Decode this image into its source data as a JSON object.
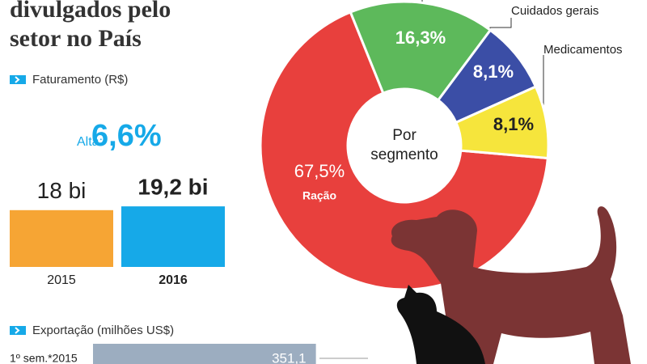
{
  "header": {
    "title_lines": [
      "divulgados pelo",
      "setor no País"
    ]
  },
  "chart_data": [
    {
      "type": "bar",
      "title": "Faturamento (R$)",
      "annotation_label": "Alta:",
      "annotation_value": "6,6%",
      "categories": [
        "2015",
        "2016"
      ],
      "values": [
        18,
        19.2
      ],
      "value_labels": [
        "18 bi",
        "19,2 bi"
      ],
      "colors": [
        "#f6a534",
        "#16a9e8"
      ]
    },
    {
      "type": "pie",
      "center_label": "Por segmento",
      "categories": [
        "Ração",
        null,
        "Cuidados gerais",
        "Medicamentos"
      ],
      "values": [
        67.5,
        16.3,
        8.1,
        8.1
      ],
      "value_labels": [
        "67,5%",
        "16,3%",
        "8,1%",
        "8,1%"
      ],
      "colors": [
        "#e8403d",
        "#5db95b",
        "#3b4ea6",
        "#f6e53c"
      ]
    },
    {
      "type": "hbar",
      "title": "Exportação (milhões US$)",
      "categories": [
        "1º sem.*2015"
      ],
      "values": [
        351.1
      ],
      "value_labels": [
        "351,1"
      ],
      "color": "#9cadc0"
    }
  ]
}
